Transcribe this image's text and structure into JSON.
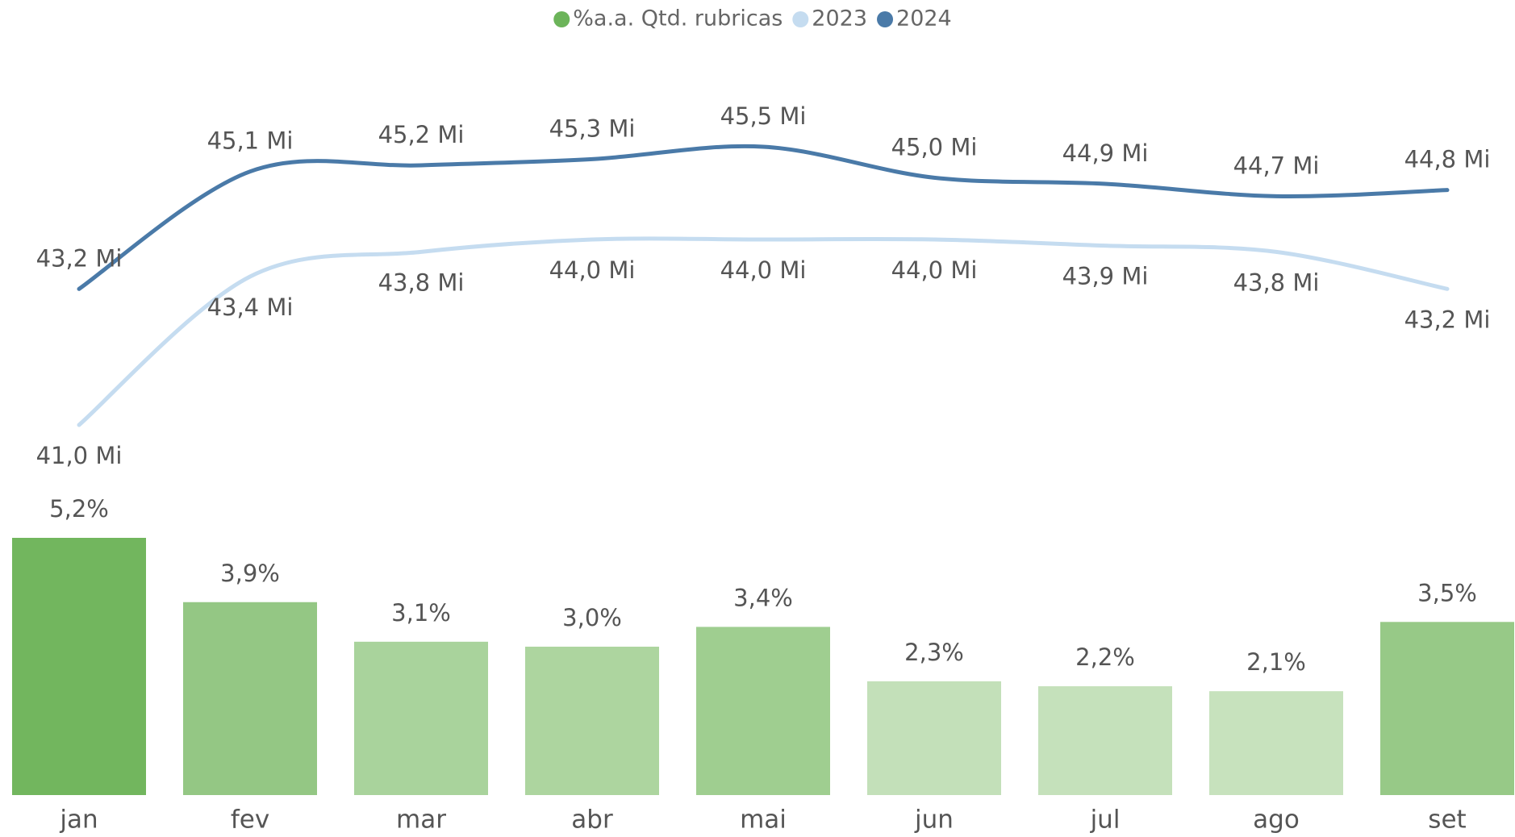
{
  "chart_data": {
    "type": "combo",
    "categories": [
      "jan",
      "fev",
      "mar",
      "abr",
      "mai",
      "jun",
      "jul",
      "ago",
      "set"
    ],
    "ylim": [
      0,
      5.2
    ],
    "y2lim": [
      41.0,
      45.5
    ],
    "series": [
      {
        "name": "%a.a. Qtd. rubricas",
        "type": "bar",
        "color": "#6cb45a",
        "colors": [
          "#72b65e",
          "#94c784",
          "#a9d39c",
          "#add59f",
          "#9fce90",
          "#c3e0b9",
          "#c5e1bb",
          "#c7e2bd",
          "#97c987"
        ],
        "values": [
          5.2,
          3.9,
          3.1,
          3.0,
          3.4,
          2.3,
          2.2,
          2.1,
          3.5
        ],
        "value_labels": [
          "5,2%",
          "3,9%",
          "3,1%",
          "3,0%",
          "3,4%",
          "2,3%",
          "2,2%",
          "2,1%",
          "3,5%"
        ]
      },
      {
        "name": "2023",
        "type": "line",
        "axis": "y2",
        "color": "#c5dcf0",
        "values": [
          41.0,
          43.4,
          43.8,
          44.0,
          44.0,
          44.0,
          43.9,
          43.8,
          43.2
        ],
        "value_labels": [
          "41,0 Mi",
          "43,4 Mi",
          "43,8 Mi",
          "44,0 Mi",
          "44,0 Mi",
          "44,0 Mi",
          "43,9 Mi",
          "43,8 Mi",
          "43,2 Mi"
        ]
      },
      {
        "name": "2024",
        "type": "line",
        "axis": "y2",
        "color": "#4a7aa8",
        "values": [
          43.2,
          45.1,
          45.2,
          45.3,
          45.5,
          45.0,
          44.9,
          44.7,
          44.8
        ],
        "value_labels": [
          "43,2 Mi",
          "45,1 Mi",
          "45,2 Mi",
          "45,3 Mi",
          "45,5 Mi",
          "45,0 Mi",
          "44,9 Mi",
          "44,7 Mi",
          "44,8 Mi"
        ]
      }
    ]
  }
}
